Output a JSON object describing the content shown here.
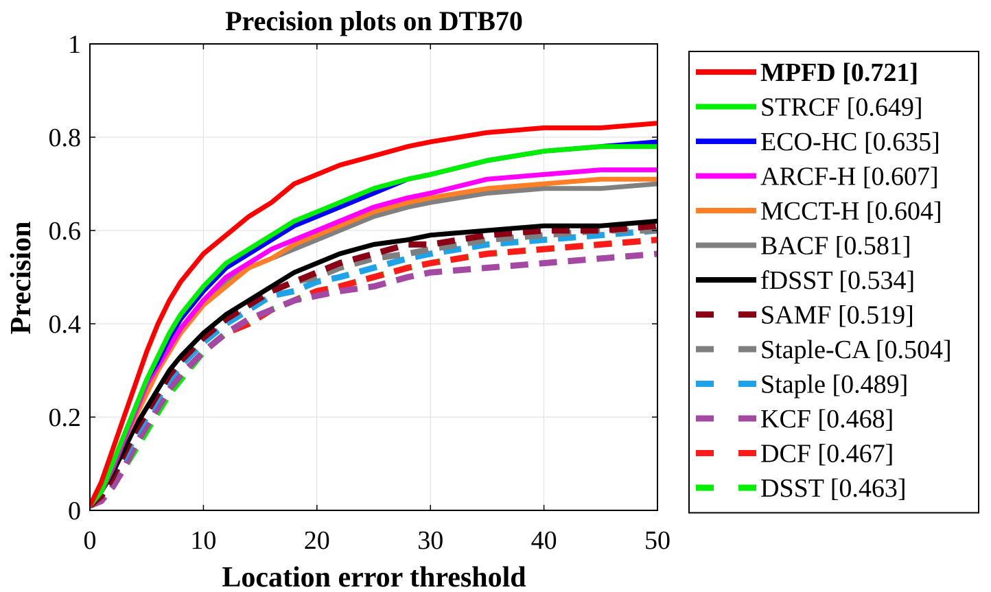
{
  "chart_data": {
    "type": "line",
    "title": "Precision plots on DTB70",
    "xlabel": "Location error threshold",
    "ylabel": "Precision",
    "xlim": [
      0,
      50
    ],
    "ylim": [
      0,
      1
    ],
    "xticks": [
      0,
      10,
      20,
      30,
      40,
      50
    ],
    "yticks": [
      0,
      0.2,
      0.4,
      0.6,
      0.8,
      1
    ],
    "xtick_labels": [
      "0",
      "10",
      "20",
      "30",
      "40",
      "50"
    ],
    "ytick_labels": [
      "0",
      "0.2",
      "0.4",
      "0.6",
      "0.8",
      "1"
    ],
    "grid": true,
    "legend_position": "right",
    "x": [
      0,
      1,
      2,
      3,
      4,
      5,
      6,
      7,
      8,
      10,
      12,
      14,
      16,
      18,
      20,
      22,
      25,
      28,
      30,
      35,
      40,
      45,
      50
    ],
    "series": [
      {
        "name": "MPFD [0.721]",
        "legend_bold": true,
        "color": "#ff0000",
        "dashed": false,
        "values": [
          0.01,
          0.06,
          0.13,
          0.2,
          0.27,
          0.34,
          0.4,
          0.45,
          0.49,
          0.55,
          0.59,
          0.63,
          0.66,
          0.7,
          0.72,
          0.74,
          0.76,
          0.78,
          0.79,
          0.81,
          0.82,
          0.82,
          0.83
        ]
      },
      {
        "name": "STRCF [0.649]",
        "color": "#00ee00",
        "dashed": false,
        "values": [
          0.01,
          0.04,
          0.1,
          0.16,
          0.22,
          0.28,
          0.33,
          0.38,
          0.42,
          0.48,
          0.53,
          0.56,
          0.59,
          0.62,
          0.64,
          0.66,
          0.69,
          0.71,
          0.72,
          0.75,
          0.77,
          0.78,
          0.78
        ]
      },
      {
        "name": "ECO-HC [0.635]",
        "color": "#0000ff",
        "dashed": false,
        "values": [
          0.01,
          0.04,
          0.1,
          0.16,
          0.22,
          0.28,
          0.32,
          0.37,
          0.41,
          0.47,
          0.52,
          0.55,
          0.58,
          0.61,
          0.63,
          0.65,
          0.68,
          0.71,
          0.72,
          0.75,
          0.77,
          0.78,
          0.79
        ]
      },
      {
        "name": "ARCF-H [0.607]",
        "color": "#ff00ff",
        "dashed": false,
        "values": [
          0.01,
          0.04,
          0.09,
          0.15,
          0.21,
          0.27,
          0.31,
          0.35,
          0.39,
          0.45,
          0.5,
          0.53,
          0.56,
          0.58,
          0.6,
          0.62,
          0.65,
          0.67,
          0.68,
          0.71,
          0.72,
          0.73,
          0.73
        ]
      },
      {
        "name": "MCCT-H [0.604]",
        "color": "#ff7f27",
        "dashed": false,
        "values": [
          0.01,
          0.04,
          0.09,
          0.15,
          0.2,
          0.25,
          0.3,
          0.34,
          0.38,
          0.44,
          0.48,
          0.52,
          0.54,
          0.57,
          0.59,
          0.61,
          0.64,
          0.66,
          0.67,
          0.69,
          0.7,
          0.71,
          0.71
        ]
      },
      {
        "name": "BACF [0.581]",
        "color": "#808080",
        "dashed": false,
        "values": [
          0.01,
          0.04,
          0.09,
          0.15,
          0.2,
          0.26,
          0.3,
          0.35,
          0.39,
          0.45,
          0.49,
          0.52,
          0.54,
          0.56,
          0.58,
          0.6,
          0.63,
          0.65,
          0.66,
          0.68,
          0.69,
          0.69,
          0.7
        ]
      },
      {
        "name": "fDSST [0.534]",
        "color": "#000000",
        "dashed": false,
        "values": [
          0.01,
          0.04,
          0.08,
          0.13,
          0.18,
          0.22,
          0.26,
          0.3,
          0.33,
          0.38,
          0.42,
          0.45,
          0.48,
          0.51,
          0.53,
          0.55,
          0.57,
          0.58,
          0.59,
          0.6,
          0.61,
          0.61,
          0.62
        ]
      },
      {
        "name": "SAMF [0.519]",
        "color": "#8b0015",
        "dashed": true,
        "values": [
          0.01,
          0.03,
          0.07,
          0.12,
          0.17,
          0.21,
          0.25,
          0.29,
          0.32,
          0.37,
          0.41,
          0.44,
          0.47,
          0.49,
          0.51,
          0.53,
          0.55,
          0.57,
          0.57,
          0.59,
          0.6,
          0.6,
          0.61
        ]
      },
      {
        "name": "Staple-CA [0.504]",
        "color": "#7f7f7f",
        "dashed": true,
        "values": [
          0.01,
          0.03,
          0.07,
          0.12,
          0.17,
          0.21,
          0.25,
          0.29,
          0.32,
          0.37,
          0.41,
          0.44,
          0.47,
          0.49,
          0.5,
          0.52,
          0.54,
          0.55,
          0.56,
          0.58,
          0.59,
          0.6,
          0.6
        ]
      },
      {
        "name": "Staple [0.489]",
        "color": "#1fa3e8",
        "dashed": true,
        "values": [
          0.01,
          0.03,
          0.07,
          0.11,
          0.16,
          0.2,
          0.24,
          0.28,
          0.31,
          0.36,
          0.4,
          0.43,
          0.46,
          0.47,
          0.49,
          0.5,
          0.52,
          0.54,
          0.55,
          0.57,
          0.58,
          0.59,
          0.6
        ]
      },
      {
        "name": "KCF [0.468]",
        "color": "#a349a4",
        "dashed": true,
        "values": [
          0.01,
          0.02,
          0.05,
          0.09,
          0.14,
          0.18,
          0.22,
          0.26,
          0.29,
          0.34,
          0.38,
          0.41,
          0.43,
          0.45,
          0.46,
          0.47,
          0.48,
          0.5,
          0.51,
          0.52,
          0.53,
          0.54,
          0.55
        ]
      },
      {
        "name": "DCF [0.467]",
        "color": "#ff1a1a",
        "dashed": true,
        "values": [
          0.01,
          0.02,
          0.05,
          0.09,
          0.14,
          0.18,
          0.22,
          0.26,
          0.29,
          0.34,
          0.38,
          0.4,
          0.43,
          0.45,
          0.47,
          0.48,
          0.5,
          0.52,
          0.53,
          0.55,
          0.56,
          0.57,
          0.58
        ]
      },
      {
        "name": "DSST [0.463]",
        "color": "#00ee00",
        "dashed": true,
        "values": [
          0.01,
          0.02,
          0.05,
          0.09,
          0.13,
          0.17,
          0.21,
          0.25,
          0.28,
          0.34,
          0.38,
          0.4,
          0.43,
          0.45,
          0.47,
          0.48,
          0.5,
          0.52,
          0.53,
          0.55,
          0.56,
          0.57,
          0.58
        ]
      }
    ]
  }
}
